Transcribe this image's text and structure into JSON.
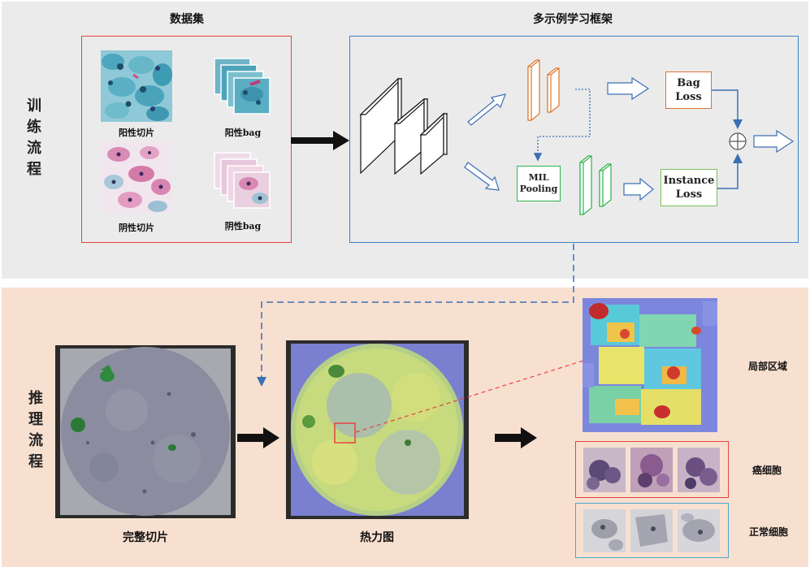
{
  "training": {
    "side_label": [
      "训",
      "练",
      "流",
      "程"
    ],
    "dataset_title": "数据集",
    "framework_title": "多示例学习框架",
    "dataset_items": [
      {
        "label": "阳性切片"
      },
      {
        "label": "阳性bag"
      },
      {
        "label": "阴性切片"
      },
      {
        "label": "阴性bag"
      }
    ],
    "mil_pooling": [
      "MIL",
      "Pooling"
    ],
    "bag_loss": [
      "Bag",
      "Loss"
    ],
    "instance_loss": [
      "Instance",
      "Loss"
    ],
    "sum_symbol": "⊕"
  },
  "inference": {
    "side_label": [
      "推",
      "理",
      "流",
      "程"
    ],
    "full_slide_caption": "完整切片",
    "heatmap_caption": "热力图",
    "local_region_label": "局部区域",
    "cancer_cell_label": "癌细胞",
    "normal_cell_label": "正常细胞"
  },
  "colors": {
    "dataset_border": "#e8423f",
    "framework_border": "#3b82c4",
    "orange_block": "#e0742a",
    "green_block": "#2cb34a",
    "bag_border": "#d9743a",
    "instance_border": "#7bbf59",
    "arrow_blue": "#3b6fb3",
    "cancer_border": "#e8423f",
    "normal_border": "#4aa9c9"
  }
}
